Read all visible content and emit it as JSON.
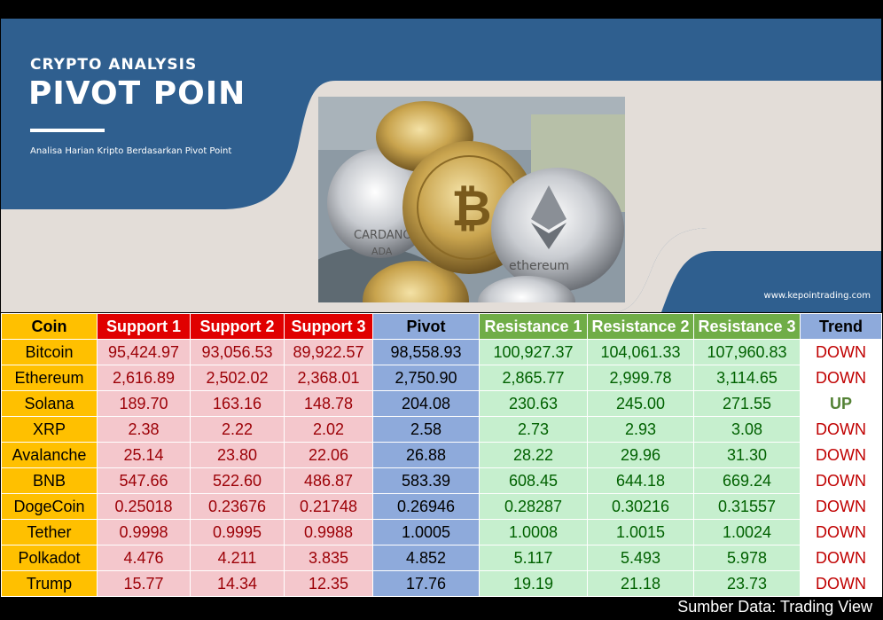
{
  "banner": {
    "title_small": "CRYPTO ANALYSIS",
    "title_big": "PIVOT POIN",
    "subtitle": "Analisa Harian Kripto Berdasarkan Pivot Point",
    "website": "www.kepointrading.com",
    "coin_photo_coin_labels": [
      "CARDANO ADA",
      "ethereum"
    ],
    "colors": {
      "brand_blue": "#2f5f8f",
      "panel_beige": "#e3ddd8"
    }
  },
  "table": {
    "headers": {
      "coin": "Coin",
      "support1": "Support 1",
      "support2": "Support 2",
      "support3": "Support 3",
      "pivot": "Pivot",
      "resistance1": "Resistance 1",
      "resistance2": "Resistance 2",
      "resistance3": "Resistance 3",
      "trend": "Trend"
    },
    "rows": [
      {
        "coin": "Bitcoin",
        "s1": "95,424.97",
        "s2": "93,056.53",
        "s3": "89,922.57",
        "pivot": "98,558.93",
        "r1": "100,927.37",
        "r2": "104,061.33",
        "r3": "107,960.83",
        "trend": "DOWN"
      },
      {
        "coin": "Ethereum",
        "s1": "2,616.89",
        "s2": "2,502.02",
        "s3": "2,368.01",
        "pivot": "2,750.90",
        "r1": "2,865.77",
        "r2": "2,999.78",
        "r3": "3,114.65",
        "trend": "DOWN"
      },
      {
        "coin": "Solana",
        "s1": "189.70",
        "s2": "163.16",
        "s3": "148.78",
        "pivot": "204.08",
        "r1": "230.63",
        "r2": "245.00",
        "r3": "271.55",
        "trend": "UP"
      },
      {
        "coin": "XRP",
        "s1": "2.38",
        "s2": "2.22",
        "s3": "2.02",
        "pivot": "2.58",
        "r1": "2.73",
        "r2": "2.93",
        "r3": "3.08",
        "trend": "DOWN"
      },
      {
        "coin": "Avalanche",
        "s1": "25.14",
        "s2": "23.80",
        "s3": "22.06",
        "pivot": "26.88",
        "r1": "28.22",
        "r2": "29.96",
        "r3": "31.30",
        "trend": "DOWN"
      },
      {
        "coin": "BNB",
        "s1": "547.66",
        "s2": "522.60",
        "s3": "486.87",
        "pivot": "583.39",
        "r1": "608.45",
        "r2": "644.18",
        "r3": "669.24",
        "trend": "DOWN"
      },
      {
        "coin": "DogeCoin",
        "s1": "0.25018",
        "s2": "0.23676",
        "s3": "0.21748",
        "pivot": "0.26946",
        "r1": "0.28287",
        "r2": "0.30216",
        "r3": "0.31557",
        "trend": "DOWN"
      },
      {
        "coin": "Tether",
        "s1": "0.9998",
        "s2": "0.9995",
        "s3": "0.9988",
        "pivot": "1.0005",
        "r1": "1.0008",
        "r2": "1.0015",
        "r3": "1.0024",
        "trend": "DOWN"
      },
      {
        "coin": "Polkadot",
        "s1": "4.476",
        "s2": "4.211",
        "s3": "3.835",
        "pivot": "4.852",
        "r1": "5.117",
        "r2": "5.493",
        "r3": "5.978",
        "trend": "DOWN"
      },
      {
        "coin": "Trump",
        "s1": "15.77",
        "s2": "14.34",
        "s3": "12.35",
        "pivot": "17.76",
        "r1": "19.19",
        "r2": "21.18",
        "r3": "23.73",
        "trend": "DOWN"
      }
    ]
  },
  "footer": {
    "source": "Sumber Data: Trading View"
  }
}
